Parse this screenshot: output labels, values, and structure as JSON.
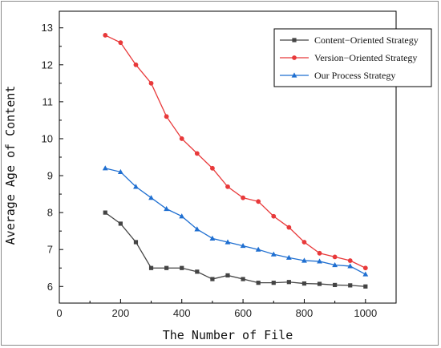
{
  "chart_data": {
    "type": "line",
    "xlabel": "The Number of File",
    "ylabel": "Average Age of Content",
    "xlim": [
      0,
      1100
    ],
    "ylim": [
      5.55,
      13.45
    ],
    "xticks": [
      0,
      200,
      400,
      600,
      800,
      1000
    ],
    "yticks": [
      6,
      7,
      8,
      9,
      10,
      11,
      12,
      13
    ],
    "grid": false,
    "legend_position": "top-right",
    "series": [
      {
        "name": "Content−Oriented Strategy",
        "color": "#444444",
        "marker": "square",
        "x": [
          150,
          200,
          250,
          300,
          350,
          400,
          450,
          500,
          550,
          600,
          650,
          700,
          750,
          800,
          850,
          900,
          950,
          1000
        ],
        "y": [
          8.0,
          7.7,
          7.2,
          6.5,
          6.5,
          6.5,
          6.4,
          6.2,
          6.3,
          6.2,
          6.1,
          6.1,
          6.12,
          6.08,
          6.07,
          6.04,
          6.03,
          6.0
        ]
      },
      {
        "name": "Version−Oriented Strategy",
        "color": "#e8393a",
        "marker": "circle",
        "x": [
          150,
          200,
          250,
          300,
          350,
          400,
          450,
          500,
          550,
          600,
          650,
          700,
          750,
          800,
          850,
          900,
          950,
          1000
        ],
        "y": [
          12.8,
          12.6,
          12.0,
          11.5,
          10.6,
          10.0,
          9.6,
          9.2,
          8.7,
          8.4,
          8.3,
          7.9,
          7.6,
          7.2,
          6.9,
          6.8,
          6.7,
          6.5
        ]
      },
      {
        "name": "Our Process Strategy",
        "color": "#1f6fd1",
        "marker": "triangle",
        "x": [
          150,
          200,
          250,
          300,
          350,
          400,
          450,
          500,
          550,
          600,
          650,
          700,
          750,
          800,
          850,
          900,
          950,
          1000
        ],
        "y": [
          9.2,
          9.1,
          8.7,
          8.4,
          8.1,
          7.9,
          7.55,
          7.3,
          7.2,
          7.1,
          7.0,
          6.87,
          6.78,
          6.7,
          6.68,
          6.58,
          6.55,
          6.33
        ]
      }
    ]
  }
}
